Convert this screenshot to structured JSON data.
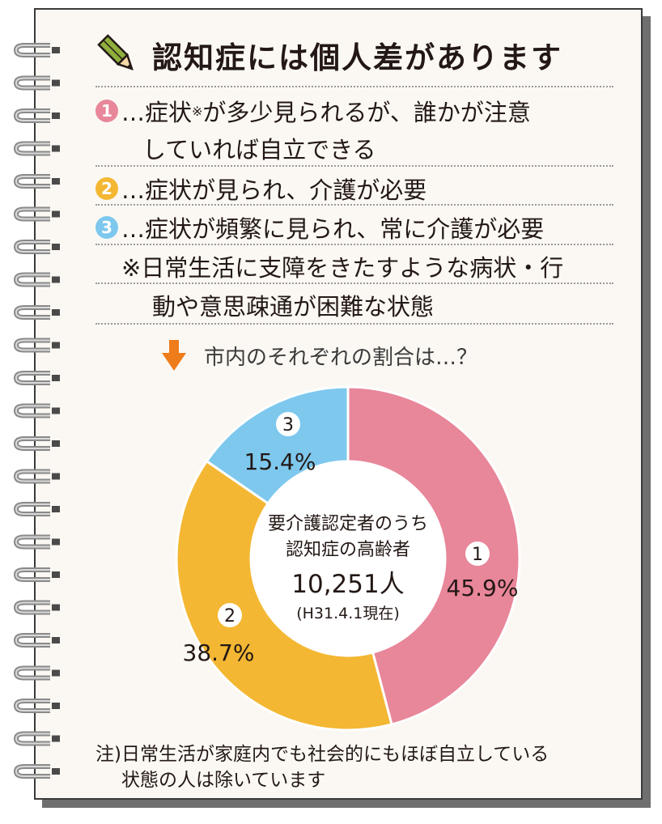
{
  "header": {
    "title": "認知症には個人差があります",
    "pencil_icon": "pencil-icon"
  },
  "definitions": {
    "item1": {
      "num": "1",
      "text_a": "…症状",
      "mark": "※",
      "text_b": "が多少見られるが、誰かが注意",
      "text_cont": "していれば自立できる",
      "color": "#e8869a"
    },
    "item2": {
      "num": "2",
      "text": "…症状が見られ、介護が必要",
      "color": "#f4b733"
    },
    "item3": {
      "num": "3",
      "text": "…症状が頻繁に見られ、常に介護が必要",
      "color": "#7ec8ee"
    },
    "footnote_line1": "※日常生活に支障をきたすような病状・行",
    "footnote_line2": "動や意思疎通が困難な状態"
  },
  "prompt": {
    "text": "市内のそれぞれの割合は…？",
    "arrow_icon": "down-arrow-icon",
    "arrow_color": "#ef7c1a"
  },
  "chart_data": {
    "type": "pie",
    "donut": true,
    "slices": [
      {
        "name": "1",
        "value": 45.9,
        "label": "45.9%",
        "color": "#e8869a"
      },
      {
        "name": "2",
        "value": 38.7,
        "label": "38.7%",
        "color": "#f4b733"
      },
      {
        "name": "3",
        "value": 15.4,
        "label": "15.4%",
        "color": "#7ec8ee"
      }
    ],
    "center_text": {
      "line1": "要介護認定者のうち",
      "line2": "認知症の高齢者",
      "total": "10,251人",
      "date": "(H31.4.1現在)"
    }
  },
  "note": {
    "line1": "注)日常生活が家庭内でも社会的にもほぼ自立している",
    "line2": "状態の人は除いています"
  }
}
